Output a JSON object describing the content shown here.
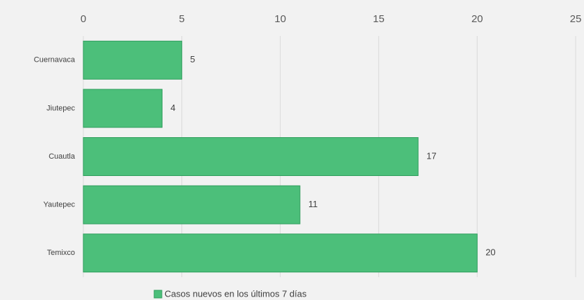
{
  "chart_data": {
    "type": "bar",
    "orientation": "horizontal",
    "categories": [
      "Cuernavaca",
      "Jiutepec",
      "Cuautla",
      "Yautepec",
      "Temixco"
    ],
    "series": [
      {
        "name": "Casos nuevos en los últimos 7 días",
        "color": "#4cbf7a",
        "values": [
          5,
          4,
          17,
          11,
          20
        ]
      }
    ],
    "xlim": [
      0,
      25
    ],
    "xticks": [
      0,
      5,
      10,
      15,
      20,
      25
    ],
    "grid": true,
    "legend": "bottom"
  }
}
